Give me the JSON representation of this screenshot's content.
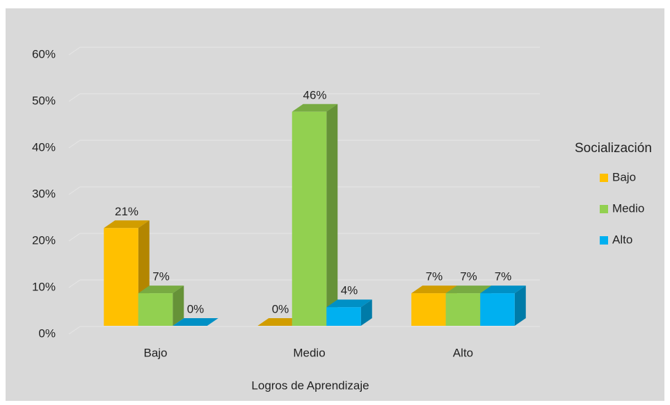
{
  "chart_data": {
    "type": "bar3d",
    "categories": [
      "Bajo",
      "Medio",
      "Alto"
    ],
    "series": [
      {
        "name": "Bajo",
        "color": "#FFC000",
        "values": [
          21,
          0,
          7
        ],
        "value_labels": [
          "21%",
          "0%",
          "7%"
        ]
      },
      {
        "name": "Medio",
        "color": "#92D050",
        "values": [
          7,
          46,
          7
        ],
        "value_labels": [
          "7%",
          "46%",
          "7%"
        ]
      },
      {
        "name": "Alto",
        "color": "#00B0F0",
        "values": [
          0,
          4,
          7
        ],
        "value_labels": [
          "0%",
          "4%",
          "7%"
        ]
      }
    ],
    "xlabel": "Logros de Aprendizaje",
    "legend_title": "Socialización",
    "legend": "right",
    "ylim": [
      0,
      60
    ],
    "yticks": [
      {
        "value": 0,
        "label": "0%"
      },
      {
        "value": 10,
        "label": "10%"
      },
      {
        "value": 20,
        "label": "20%"
      },
      {
        "value": 30,
        "label": "30%"
      },
      {
        "value": 40,
        "label": "40%"
      },
      {
        "value": 50,
        "label": "50%"
      },
      {
        "value": 60,
        "label": "60%"
      }
    ],
    "grid": true
  }
}
